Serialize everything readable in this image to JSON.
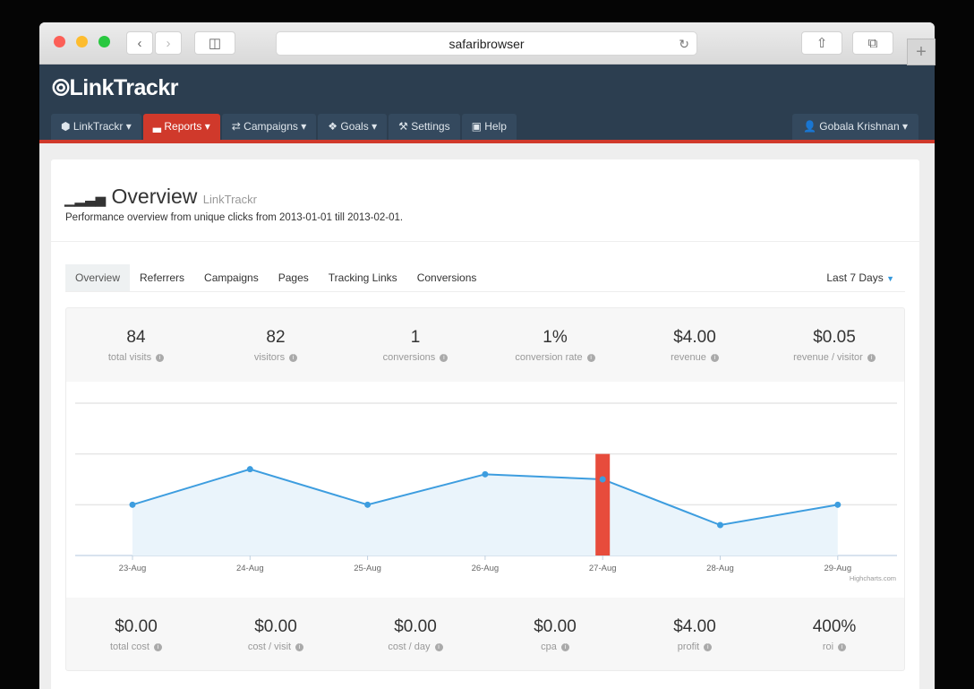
{
  "browser": {
    "url": "safaribrowser",
    "new_tab": "+"
  },
  "app": {
    "logo": "LinkTrackr"
  },
  "nav": {
    "items": [
      {
        "label": "LinkTrackr",
        "icon": "cube-icon",
        "caret": true
      },
      {
        "label": "Reports",
        "icon": "signal-icon",
        "caret": true,
        "active": true
      },
      {
        "label": "Campaigns",
        "icon": "shuffle-icon",
        "caret": true
      },
      {
        "label": "Goals",
        "icon": "crosshair-icon",
        "caret": true
      },
      {
        "label": "Settings",
        "icon": "wrench-icon",
        "caret": false
      },
      {
        "label": "Help",
        "icon": "medkit-icon",
        "caret": false
      }
    ],
    "user": "Gobala Krishnan"
  },
  "page": {
    "title": "Overview",
    "subtitle": "LinkTrackr",
    "description": "Performance overview from unique clicks from 2013-01-01 till 2013-02-01."
  },
  "tabs": [
    "Overview",
    "Referrers",
    "Campaigns",
    "Pages",
    "Tracking Links",
    "Conversions"
  ],
  "range": "Last 7 Days",
  "stats_top": [
    {
      "value": "84",
      "label": "total visits"
    },
    {
      "value": "82",
      "label": "visitors"
    },
    {
      "value": "1",
      "label": "conversions"
    },
    {
      "value": "1%",
      "label": "conversion rate"
    },
    {
      "value": "$4.00",
      "label": "revenue"
    },
    {
      "value": "$0.05",
      "label": "revenue / visitor"
    }
  ],
  "stats_bottom": [
    {
      "value": "$0.00",
      "label": "total cost"
    },
    {
      "value": "$0.00",
      "label": "cost / visit"
    },
    {
      "value": "$0.00",
      "label": "cost / day"
    },
    {
      "value": "$0.00",
      "label": "cpa"
    },
    {
      "value": "$4.00",
      "label": "profit"
    },
    {
      "value": "400%",
      "label": "roi"
    }
  ],
  "chart_data": {
    "type": "area",
    "categories": [
      "23-Aug",
      "24-Aug",
      "25-Aug",
      "26-Aug",
      "27-Aug",
      "28-Aug",
      "29-Aug"
    ],
    "series": [
      {
        "type": "area",
        "values": [
          10,
          17,
          10,
          16,
          15,
          6,
          10
        ],
        "color": "#3d9ddf"
      },
      {
        "type": "bar",
        "values": [
          0,
          0,
          0,
          0,
          20,
          0,
          0
        ],
        "color": "#e74c3c"
      }
    ],
    "ylim": [
      0,
      30
    ],
    "grid": true,
    "credit": "Highcharts.com"
  }
}
